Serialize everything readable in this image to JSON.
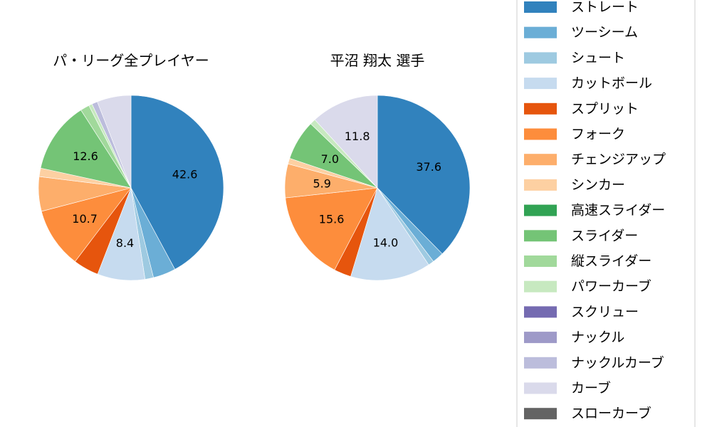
{
  "chart_data": [
    {
      "type": "pie",
      "title": "パ・リーグ全プレイヤー",
      "series": [
        {
          "name": "ストレート",
          "value": 42.6,
          "label": "42.6"
        },
        {
          "name": "ツーシーム",
          "value": 4.0,
          "label": ""
        },
        {
          "name": "シュート",
          "value": 1.5,
          "label": ""
        },
        {
          "name": "カットボール",
          "value": 8.4,
          "label": "8.4"
        },
        {
          "name": "スプリット",
          "value": 4.5,
          "label": ""
        },
        {
          "name": "フォーク",
          "value": 10.7,
          "label": "10.7"
        },
        {
          "name": "チェンジアップ",
          "value": 6.1,
          "label": ""
        },
        {
          "name": "シンカー",
          "value": 1.5,
          "label": ""
        },
        {
          "name": "高速スライダー",
          "value": 0.0,
          "label": ""
        },
        {
          "name": "スライダー",
          "value": 12.6,
          "label": "12.6"
        },
        {
          "name": "縦スライダー",
          "value": 1.6,
          "label": ""
        },
        {
          "name": "パワーカーブ",
          "value": 0.6,
          "label": ""
        },
        {
          "name": "スクリュー",
          "value": 0.0,
          "label": ""
        },
        {
          "name": "ナックル",
          "value": 0.0,
          "label": ""
        },
        {
          "name": "ナックルカーブ",
          "value": 1.0,
          "label": ""
        },
        {
          "name": "カーブ",
          "value": 6.0,
          "label": ""
        },
        {
          "name": "スローカーブ",
          "value": 0.0,
          "label": ""
        }
      ]
    },
    {
      "type": "pie",
      "title": "平沼 翔太  選手",
      "series": [
        {
          "name": "ストレート",
          "value": 37.6,
          "label": "37.6"
        },
        {
          "name": "ツーシーム",
          "value": 2.0,
          "label": ""
        },
        {
          "name": "シュート",
          "value": 1.0,
          "label": ""
        },
        {
          "name": "カットボール",
          "value": 14.0,
          "label": "14.0"
        },
        {
          "name": "スプリット",
          "value": 3.0,
          "label": ""
        },
        {
          "name": "フォーク",
          "value": 15.6,
          "label": "15.6"
        },
        {
          "name": "チェンジアップ",
          "value": 5.9,
          "label": "5.9"
        },
        {
          "name": "シンカー",
          "value": 1.0,
          "label": ""
        },
        {
          "name": "高速スライダー",
          "value": 0.0,
          "label": ""
        },
        {
          "name": "スライダー",
          "value": 7.0,
          "label": "7.0"
        },
        {
          "name": "縦スライダー",
          "value": 0.0,
          "label": ""
        },
        {
          "name": "パワーカーブ",
          "value": 1.0,
          "label": ""
        },
        {
          "name": "スクリュー",
          "value": 0.0,
          "label": ""
        },
        {
          "name": "ナックル",
          "value": 0.0,
          "label": ""
        },
        {
          "name": "ナックルカーブ",
          "value": 0.0,
          "label": ""
        },
        {
          "name": "カーブ",
          "value": 11.8,
          "label": "11.8"
        },
        {
          "name": "スローカーブ",
          "value": 0.0,
          "label": ""
        }
      ]
    }
  ],
  "legend": {
    "placement": "right",
    "items": [
      {
        "name": "ストレート",
        "color": "#3182bd"
      },
      {
        "name": "ツーシーム",
        "color": "#6baed6"
      },
      {
        "name": "シュート",
        "color": "#9ecae1"
      },
      {
        "name": "カットボール",
        "color": "#c6dbef"
      },
      {
        "name": "スプリット",
        "color": "#e6550d"
      },
      {
        "name": "フォーク",
        "color": "#fd8d3c"
      },
      {
        "name": "チェンジアップ",
        "color": "#fdae6b"
      },
      {
        "name": "シンカー",
        "color": "#fdd0a2"
      },
      {
        "name": "高速スライダー",
        "color": "#31a354"
      },
      {
        "name": "スライダー",
        "color": "#74c476"
      },
      {
        "name": "縦スライダー",
        "color": "#a1d99b"
      },
      {
        "name": "パワーカーブ",
        "color": "#c7e9c0"
      },
      {
        "name": "スクリュー",
        "color": "#756bb1"
      },
      {
        "name": "ナックル",
        "color": "#9e9ac8"
      },
      {
        "name": "ナックルカーブ",
        "color": "#bcbddc"
      },
      {
        "name": "カーブ",
        "color": "#dadaeb"
      },
      {
        "name": "スローカーブ",
        "color": "#636363"
      }
    ]
  }
}
